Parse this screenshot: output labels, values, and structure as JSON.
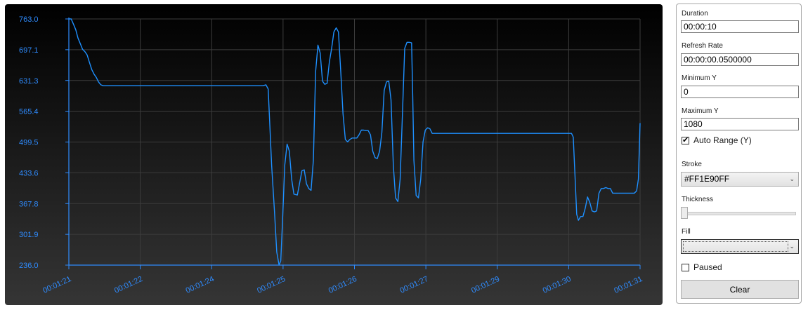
{
  "chart_data": {
    "type": "line",
    "title": "",
    "xlabel": "",
    "ylabel": "",
    "ylim": [
      236.0,
      763.0
    ],
    "y_ticks": [
      "763.0",
      "697.1",
      "631.3",
      "565.4",
      "499.5",
      "433.6",
      "367.8",
      "301.9",
      "236.0"
    ],
    "x_ticks": [
      "00:01:21",
      "00:01:22",
      "00:01:24",
      "00:01:25",
      "00:01:26",
      "00:01:27",
      "00:01:29",
      "00:01:30",
      "00:01:31"
    ],
    "x_range": [
      0,
      1
    ],
    "grid": true,
    "stroke_color": "#1E90FF",
    "series": [
      {
        "values": [
          [
            0.0,
            763
          ],
          [
            0.004,
            763
          ],
          [
            0.008,
            752
          ],
          [
            0.012,
            740
          ],
          [
            0.016,
            722
          ],
          [
            0.02,
            710
          ],
          [
            0.024,
            698
          ],
          [
            0.028,
            693
          ],
          [
            0.032,
            686
          ],
          [
            0.036,
            670
          ],
          [
            0.04,
            655
          ],
          [
            0.044,
            645
          ],
          [
            0.048,
            638
          ],
          [
            0.052,
            628
          ],
          [
            0.056,
            622
          ],
          [
            0.06,
            620
          ],
          [
            0.066,
            620
          ],
          [
            0.08,
            620
          ],
          [
            0.15,
            620
          ],
          [
            0.25,
            620
          ],
          [
            0.34,
            620
          ],
          [
            0.345,
            622
          ],
          [
            0.349,
            613
          ],
          [
            0.355,
            450
          ],
          [
            0.36,
            350
          ],
          [
            0.364,
            264
          ],
          [
            0.368,
            236
          ],
          [
            0.371,
            245
          ],
          [
            0.374,
            330
          ],
          [
            0.378,
            450
          ],
          [
            0.382,
            495
          ],
          [
            0.386,
            480
          ],
          [
            0.39,
            420
          ],
          [
            0.394,
            388
          ],
          [
            0.4,
            386
          ],
          [
            0.404,
            412
          ],
          [
            0.408,
            438
          ],
          [
            0.412,
            440
          ],
          [
            0.416,
            410
          ],
          [
            0.42,
            400
          ],
          [
            0.424,
            396
          ],
          [
            0.428,
            460
          ],
          [
            0.432,
            650
          ],
          [
            0.436,
            707
          ],
          [
            0.44,
            690
          ],
          [
            0.444,
            630
          ],
          [
            0.448,
            623
          ],
          [
            0.452,
            625
          ],
          [
            0.456,
            670
          ],
          [
            0.46,
            700
          ],
          [
            0.464,
            735
          ],
          [
            0.468,
            744
          ],
          [
            0.472,
            735
          ],
          [
            0.476,
            650
          ],
          [
            0.48,
            560
          ],
          [
            0.484,
            505
          ],
          [
            0.488,
            500
          ],
          [
            0.492,
            505
          ],
          [
            0.496,
            508
          ],
          [
            0.5,
            508
          ],
          [
            0.504,
            508
          ],
          [
            0.508,
            515
          ],
          [
            0.512,
            525
          ],
          [
            0.516,
            525
          ],
          [
            0.52,
            524
          ],
          [
            0.524,
            524
          ],
          [
            0.528,
            515
          ],
          [
            0.532,
            480
          ],
          [
            0.536,
            466
          ],
          [
            0.54,
            464
          ],
          [
            0.544,
            480
          ],
          [
            0.548,
            520
          ],
          [
            0.552,
            610
          ],
          [
            0.556,
            628
          ],
          [
            0.56,
            630
          ],
          [
            0.564,
            590
          ],
          [
            0.568,
            450
          ],
          [
            0.572,
            380
          ],
          [
            0.576,
            372
          ],
          [
            0.58,
            420
          ],
          [
            0.584,
            560
          ],
          [
            0.588,
            700
          ],
          [
            0.592,
            713
          ],
          [
            0.596,
            713
          ],
          [
            0.6,
            712
          ],
          [
            0.602,
            600
          ],
          [
            0.604,
            460
          ],
          [
            0.608,
            385
          ],
          [
            0.612,
            380
          ],
          [
            0.616,
            420
          ],
          [
            0.62,
            500
          ],
          [
            0.624,
            525
          ],
          [
            0.628,
            530
          ],
          [
            0.632,
            528
          ],
          [
            0.636,
            518
          ],
          [
            0.64,
            518
          ],
          [
            0.7,
            518
          ],
          [
            0.8,
            518
          ],
          [
            0.88,
            518
          ],
          [
            0.883,
            510
          ],
          [
            0.886,
            430
          ],
          [
            0.889,
            345
          ],
          [
            0.892,
            332
          ],
          [
            0.896,
            340
          ],
          [
            0.9,
            340
          ],
          [
            0.904,
            358
          ],
          [
            0.908,
            382
          ],
          [
            0.912,
            370
          ],
          [
            0.916,
            352
          ],
          [
            0.92,
            350
          ],
          [
            0.924,
            352
          ],
          [
            0.928,
            390
          ],
          [
            0.932,
            400
          ],
          [
            0.936,
            400
          ],
          [
            0.94,
            402
          ],
          [
            0.944,
            400
          ],
          [
            0.948,
            400
          ],
          [
            0.952,
            390
          ],
          [
            0.96,
            390
          ],
          [
            0.98,
            390
          ],
          [
            0.99,
            390
          ],
          [
            0.994,
            395
          ],
          [
            0.997,
            420
          ],
          [
            1.0,
            540
          ]
        ]
      }
    ]
  },
  "controls": {
    "duration_label": "Duration",
    "duration_value": "00:00:10",
    "refresh_rate_label": "Refresh Rate",
    "refresh_rate_value": "00:00:00.0500000",
    "minimum_y_label": "Minimum Y",
    "minimum_y_value": "0",
    "maximum_y_label": "Maximum Y",
    "maximum_y_value": "1080",
    "auto_range_label": "Auto Range (Y)",
    "auto_range_checked": true,
    "stroke_label": "Stroke",
    "stroke_value": "#FF1E90FF",
    "thickness_label": "Thickness",
    "thickness_value": 0,
    "fill_label": "Fill",
    "fill_value": "",
    "paused_label": "Paused",
    "paused_checked": false,
    "clear_label": "Clear"
  }
}
